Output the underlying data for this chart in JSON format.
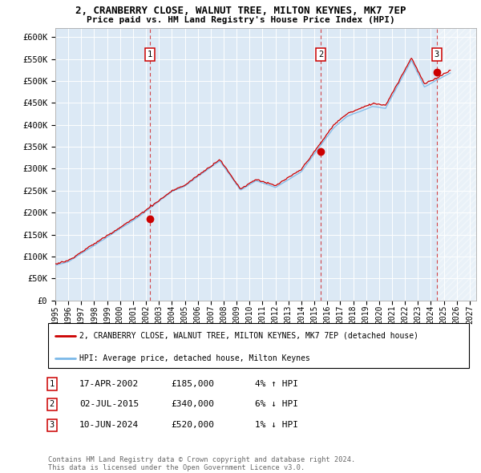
{
  "title1": "2, CRANBERRY CLOSE, WALNUT TREE, MILTON KEYNES, MK7 7EP",
  "title2": "Price paid vs. HM Land Registry's House Price Index (HPI)",
  "ylabel_ticks": [
    "£0",
    "£50K",
    "£100K",
    "£150K",
    "£200K",
    "£250K",
    "£300K",
    "£350K",
    "£400K",
    "£450K",
    "£500K",
    "£550K",
    "£600K"
  ],
  "ytick_values": [
    0,
    50000,
    100000,
    150000,
    200000,
    250000,
    300000,
    350000,
    400000,
    450000,
    500000,
    550000,
    600000
  ],
  "ylim": [
    0,
    620000
  ],
  "xlim_start": 1995.0,
  "xlim_end": 2027.5,
  "background_color": "#dce9f5",
  "hpi_color": "#7ab8e8",
  "price_color": "#cc0000",
  "sale1_date": 2002.3,
  "sale1_price": 185000,
  "sale2_date": 2015.5,
  "sale2_price": 340000,
  "sale3_date": 2024.45,
  "sale3_price": 520000,
  "legend_line1": "2, CRANBERRY CLOSE, WALNUT TREE, MILTON KEYNES, MK7 7EP (detached house)",
  "legend_line2": "HPI: Average price, detached house, Milton Keynes",
  "table_data": [
    {
      "num": "1",
      "date": "17-APR-2002",
      "price": "£185,000",
      "hpi": "4% ↑ HPI"
    },
    {
      "num": "2",
      "date": "02-JUL-2015",
      "price": "£340,000",
      "hpi": "6% ↓ HPI"
    },
    {
      "num": "3",
      "date": "10-JUN-2024",
      "price": "£520,000",
      "hpi": "1% ↓ HPI"
    }
  ],
  "footer": "Contains HM Land Registry data © Crown copyright and database right 2024.\nThis data is licensed under the Open Government Licence v3.0.",
  "xtick_years": [
    1995,
    1996,
    1997,
    1998,
    1999,
    2000,
    2001,
    2002,
    2003,
    2004,
    2005,
    2006,
    2007,
    2008,
    2009,
    2010,
    2011,
    2012,
    2013,
    2014,
    2015,
    2016,
    2017,
    2018,
    2019,
    2020,
    2021,
    2022,
    2023,
    2024,
    2025,
    2026,
    2027
  ],
  "hatch_start": 2024.5,
  "hatch_end": 2027.5
}
